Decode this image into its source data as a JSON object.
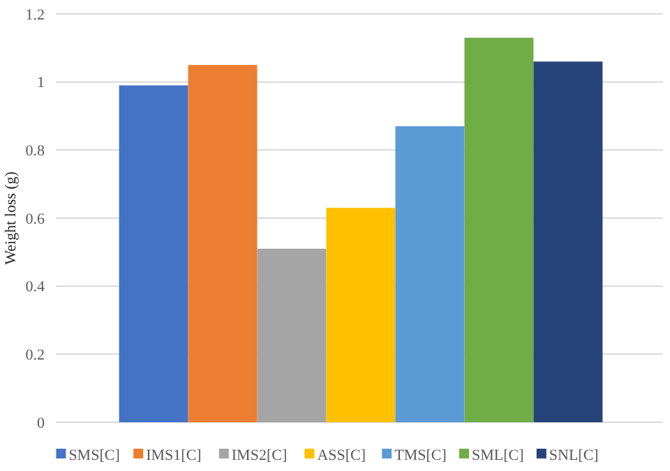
{
  "chart_data": {
    "type": "bar",
    "ylabel": "Weight loss (g)",
    "categories": [
      null
    ],
    "series": [
      {
        "name": "SMS[C]",
        "color": "#4472c4",
        "values": [
          0.99
        ]
      },
      {
        "name": "IMS1[C]",
        "color": "#ed7d31",
        "values": [
          1.05
        ]
      },
      {
        "name": "IMS2[C]",
        "color": "#a5a5a5",
        "values": [
          0.51
        ]
      },
      {
        "name": "ASS[C]",
        "color": "#ffc000",
        "values": [
          0.63
        ]
      },
      {
        "name": "TMS[C]",
        "color": "#5b9bd5",
        "values": [
          0.87
        ]
      },
      {
        "name": "SML[C]",
        "color": "#70ad47",
        "values": [
          1.13
        ]
      },
      {
        "name": "SNL[C]",
        "color": "#264478",
        "values": [
          1.06
        ]
      }
    ],
    "ylim": [
      0,
      1.2
    ],
    "yticks": [
      0,
      0.2,
      0.4,
      0.6,
      0.8,
      1,
      1.2
    ],
    "grid": "y",
    "legend": "bottom"
  }
}
